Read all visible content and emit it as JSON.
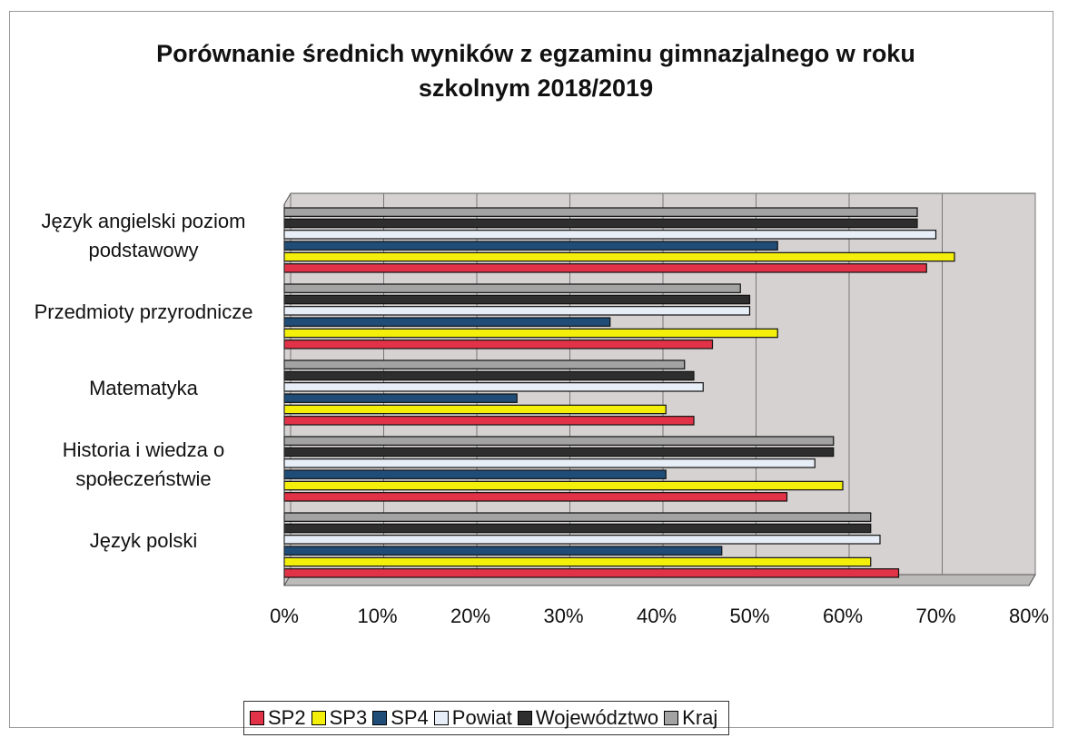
{
  "chart_data": {
    "type": "bar",
    "orientation": "horizontal",
    "title": "Porównanie średnich wyników z egzaminu gimnazjalnego w roku szkolnym 2018/2019",
    "categories": [
      "Język angielski poziom podstawowy",
      "Przedmioty przyrodnicze",
      "Matematyka",
      "Historia i wiedza o społeczeństwie",
      "Język polski"
    ],
    "series": [
      {
        "name": "SP2",
        "color": "#e23247",
        "values": [
          69,
          46,
          44,
          54,
          66
        ]
      },
      {
        "name": "SP3",
        "color": "#f3ee0a",
        "values": [
          72,
          53,
          41,
          60,
          63
        ]
      },
      {
        "name": "SP4",
        "color": "#1f4d78",
        "values": [
          53,
          35,
          25,
          41,
          47
        ]
      },
      {
        "name": "Powiat",
        "color": "#e8eef7",
        "values": [
          70,
          50,
          45,
          57,
          64
        ]
      },
      {
        "name": "Województwo",
        "color": "#2e2e2e",
        "values": [
          68,
          50,
          44,
          59,
          63
        ]
      },
      {
        "name": "Kraj",
        "color": "#a3a3a3",
        "values": [
          68,
          49,
          43,
          59,
          63
        ]
      }
    ],
    "xlim": [
      0,
      80
    ],
    "xticks": [
      {
        "value": 0,
        "label": "0%"
      },
      {
        "value": 10,
        "label": "10%"
      },
      {
        "value": 20,
        "label": "20%"
      },
      {
        "value": 30,
        "label": "30%"
      },
      {
        "value": 40,
        "label": "40%"
      },
      {
        "value": 50,
        "label": "50%"
      },
      {
        "value": 60,
        "label": "60%"
      },
      {
        "value": 70,
        "label": "70%"
      },
      {
        "value": 80,
        "label": "80%"
      }
    ],
    "grid": true,
    "legend": "bottom"
  }
}
